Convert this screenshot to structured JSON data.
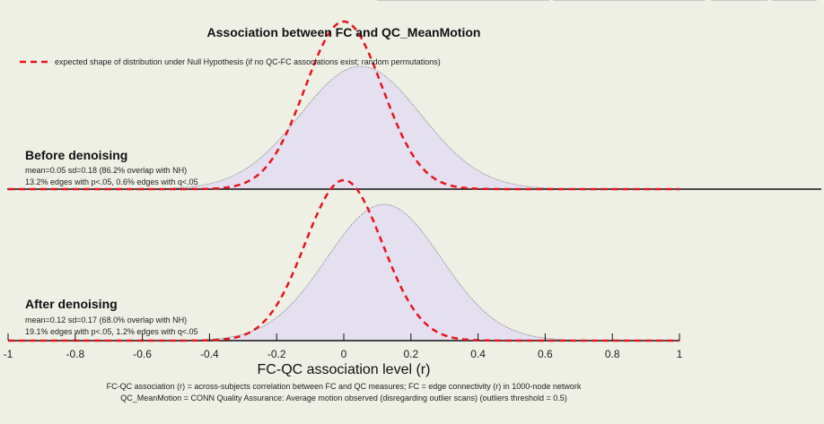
{
  "chart_data": {
    "type": "area",
    "title": "Association between FC and QC_MeanMotion",
    "xlabel": "FC-QC association level (r)",
    "xlim": [
      -1,
      1
    ],
    "xticks": [
      "-1",
      "-0.8",
      "-0.6",
      "-0.4",
      "-0.2",
      "0",
      "0.2",
      "0.4",
      "0.6",
      "0.8",
      "1"
    ],
    "legend": {
      "label": "expected shape of distribution under Null Hypothesis (if no QC-FC associations exist; random permutations)",
      "placement": "top-left",
      "style": "red dashed"
    },
    "panels": [
      {
        "name": "Before denoising",
        "stats": "mean=0.05 sd=0.18 (86.2% overlap with NH)",
        "edges": "13.2% edges with p<.05, 0.6% edges with q<.05",
        "distribution": {
          "mean": 0.05,
          "sd": 0.18
        },
        "null_hypothesis": {
          "mean": 0.0,
          "sd": 0.115
        }
      },
      {
        "name": "After denoising",
        "stats": "mean=0.12 sd=0.17 (68.0% overlap with NH)",
        "edges": "19.1% edges with p<.05, 1.2% edges with q<.05",
        "distribution": {
          "mean": 0.12,
          "sd": 0.17
        },
        "null_hypothesis": {
          "mean": 0.0,
          "sd": 0.115
        }
      }
    ],
    "notes": [
      "FC-QC association (r) = across-subjects correlation between FC and QC measures; FC = edge connectivity (r) in 1000-node network",
      "QC_MeanMotion = CONN Quality Assurance: Average motion observed (disregarding outlier scans) (outliers threshold = 0.5)"
    ],
    "colors": {
      "fill": "#e4e0f0",
      "null": "#e8141c",
      "background": "#eef0e6"
    }
  }
}
